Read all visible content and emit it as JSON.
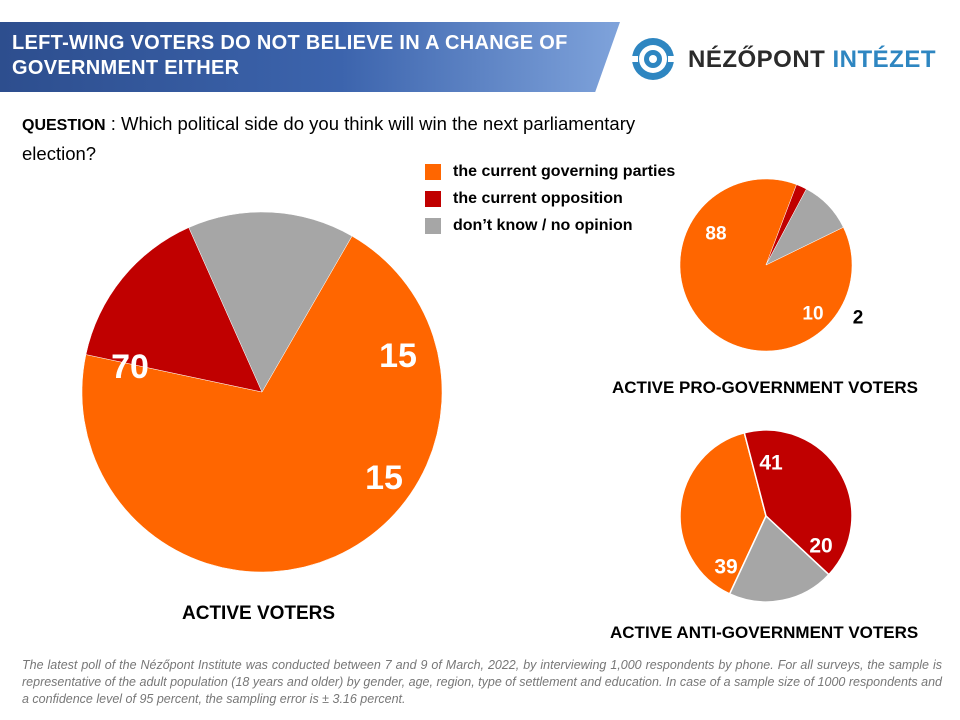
{
  "header": {
    "title": "LEFT-WING VOTERS DO NOT BELIEVE IN A CHANGE OF GOVERNMENT EITHER",
    "logo_text_dark": "NÉZŐPONT",
    "logo_text_blue": "INTÉZET"
  },
  "question": {
    "label": "QUESTION",
    "text": " : Which political side do you think will win the next parliamentary election?"
  },
  "legend": [
    {
      "label": "the current governing parties",
      "color": "#ff6600"
    },
    {
      "label": "the current opposition",
      "color": "#c00000"
    },
    {
      "label": "don’t know / no opinion",
      "color": "#a6a6a6"
    }
  ],
  "chart_data": [
    {
      "type": "pie",
      "title": "ACTIVE VOTERS",
      "labels": [
        "the current governing parties",
        "the current opposition",
        "don’t know / no opinion"
      ],
      "values": [
        70,
        15,
        15
      ],
      "colors": [
        "#ff6600",
        "#c00000",
        "#a6a6a6"
      ]
    },
    {
      "type": "pie",
      "title": "ACTIVE PRO-GOVERNMENT  VOTERS",
      "labels": [
        "the current governing parties",
        "the current opposition",
        "don’t know / no opinion"
      ],
      "values": [
        88,
        2,
        10
      ],
      "colors": [
        "#ff6600",
        "#c00000",
        "#a6a6a6"
      ]
    },
    {
      "type": "pie",
      "title": "ACTIVE ANTI-GOVERNMENT  VOTERS",
      "labels": [
        "the current governing parties",
        "the current opposition",
        "don’t know / no opinion"
      ],
      "values": [
        39,
        41,
        20
      ],
      "colors": [
        "#ff6600",
        "#c00000",
        "#a6a6a6"
      ]
    }
  ],
  "footnote": "The latest poll of the Nézőpont Institute was conducted between 7 and 9 of March, 2022, by interviewing 1,000 respondents by phone. For all surveys, the sample is representative of the adult population (18 years and older) by gender, age, region, type of settlement and education. In case of a sample size of 1000 respondents and a confidence level of 95 percent, the sampling error is ± 3.16 percent."
}
